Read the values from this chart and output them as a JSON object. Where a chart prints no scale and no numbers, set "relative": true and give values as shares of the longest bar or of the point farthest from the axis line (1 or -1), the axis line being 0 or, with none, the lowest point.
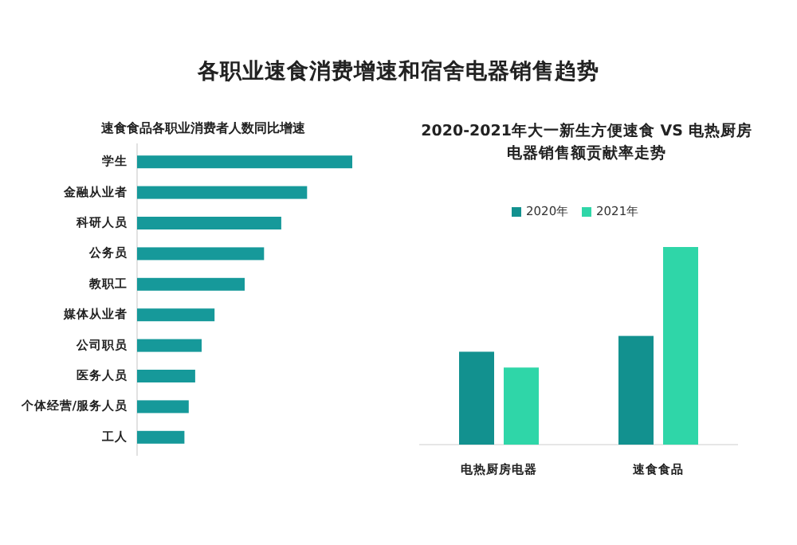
{
  "chart_data": [
    {
      "type": "bar",
      "orientation": "horizontal",
      "relative": true,
      "title": "各职业速食消费增速和宿舍电器销售趋势",
      "subtitle": "速食食品各职业消费者人数同比增速",
      "categories": [
        "学生",
        "金融从业者",
        "科研人员",
        "公务员",
        "教职工",
        "媒体从业者",
        "公司职员",
        "医务人员",
        "个体经营/服务人员",
        "工人"
      ],
      "values": [
        1,
        0.79,
        0.67,
        0.59,
        0.5,
        0.36,
        0.3,
        0.27,
        0.24,
        0.22
      ],
      "color": "#16999a"
    },
    {
      "type": "bar",
      "relative": true,
      "title": "2020-2021年大一新生方便速食 VS 电热厨房电器销售额贡献率走势",
      "categories": [
        "电热厨房电器",
        "速食食品"
      ],
      "legend": "top",
      "series": [
        {
          "name": "2020年",
          "color": "#12918f",
          "values": [
            0.47,
            0.55
          ]
        },
        {
          "name": "2021年",
          "color": "#2fd6a8",
          "values": [
            0.39,
            1
          ]
        }
      ]
    }
  ]
}
